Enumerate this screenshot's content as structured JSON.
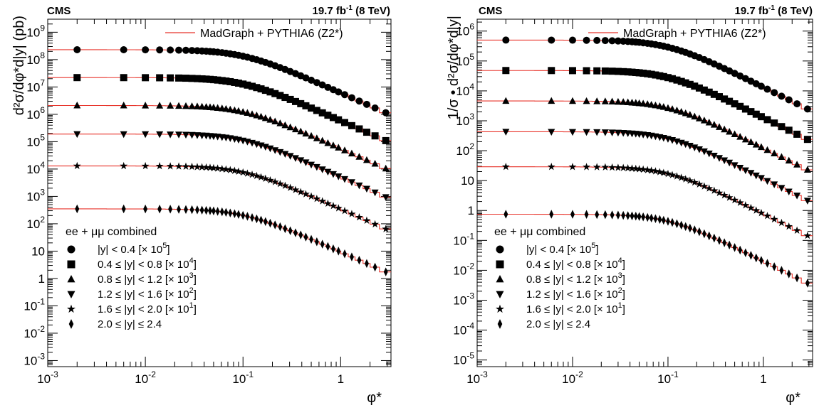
{
  "colors": {
    "curve": "#e8332a",
    "marker": "#000000"
  },
  "panels": [
    {
      "experiment": "CMS",
      "lumi": "19.7 fb",
      "lumi_sup": "-1",
      "energy": "(8 TeV)",
      "legend_curve": "MadGraph + PYTHIA6 (Z2*)",
      "legend_header": "ee + μμ combined",
      "y_ticks": [
        {
          "value": 0.001,
          "base": "10",
          "exp": "-3"
        },
        {
          "value": 0.01,
          "base": "10",
          "exp": "-2"
        },
        {
          "value": 0.1,
          "base": "10",
          "exp": "-1"
        },
        {
          "value": 1,
          "base": "1",
          "exp": ""
        },
        {
          "value": 10,
          "base": "10",
          "exp": ""
        },
        {
          "value": 100.0,
          "base": "10",
          "exp": "2"
        },
        {
          "value": 1000.0,
          "base": "10",
          "exp": "3"
        },
        {
          "value": 10000.0,
          "base": "10",
          "exp": "4"
        },
        {
          "value": 100000.0,
          "base": "10",
          "exp": "5"
        },
        {
          "value": 1000000.0,
          "base": "10",
          "exp": "6"
        },
        {
          "value": 10000000.0,
          "base": "10",
          "exp": "7"
        },
        {
          "value": 100000000.0,
          "base": "10",
          "exp": "8"
        },
        {
          "value": 1000000000.0,
          "base": "10",
          "exp": "9"
        }
      ]
    },
    {
      "experiment": "CMS",
      "lumi": "19.7 fb",
      "lumi_sup": "-1",
      "energy": "(8 TeV)",
      "legend_curve": "MadGraph + PYTHIA6 (Z2*)",
      "legend_header": "ee + μμ combined",
      "y_ticks": [
        {
          "value": 1e-05,
          "base": "10",
          "exp": "-5"
        },
        {
          "value": 0.0001,
          "base": "10",
          "exp": "-4"
        },
        {
          "value": 0.001,
          "base": "10",
          "exp": "-3"
        },
        {
          "value": 0.01,
          "base": "10",
          "exp": "-2"
        },
        {
          "value": 0.1,
          "base": "10",
          "exp": "-1"
        },
        {
          "value": 1,
          "base": "1",
          "exp": ""
        },
        {
          "value": 10,
          "base": "10",
          "exp": ""
        },
        {
          "value": 100.0,
          "base": "10",
          "exp": "2"
        },
        {
          "value": 1000.0,
          "base": "10",
          "exp": "3"
        },
        {
          "value": 10000.0,
          "base": "10",
          "exp": "4"
        },
        {
          "value": 100000.0,
          "base": "10",
          "exp": "5"
        },
        {
          "value": 1000000.0,
          "base": "10",
          "exp": "6"
        }
      ]
    }
  ],
  "x_ticks": [
    {
      "value": 0.001,
      "base": "10",
      "exp": "-3"
    },
    {
      "value": 0.01,
      "base": "10",
      "exp": "-2"
    },
    {
      "value": 0.1,
      "base": "10",
      "exp": "-1"
    },
    {
      "value": 1,
      "base": "1",
      "exp": ""
    }
  ],
  "legend_entries": [
    {
      "marker": "circle",
      "pre": "|y| < 0.4 [× 10",
      "exp": "5",
      "post": "]"
    },
    {
      "marker": "square",
      "pre": "0.4 ≤ |y| < 0.8 [× 10",
      "exp": "4",
      "post": "]"
    },
    {
      "marker": "triangle",
      "pre": "0.8 ≤ |y| < 1.2 [× 10",
      "exp": "3",
      "post": "]"
    },
    {
      "marker": "itriangle",
      "pre": "1.2 ≤ |y| < 1.6 [× 10",
      "exp": "2",
      "post": "]"
    },
    {
      "marker": "star",
      "pre": "1.6 ≤ |y| < 2.0 [× 10",
      "exp": "1",
      "post": "]"
    },
    {
      "marker": "diamond",
      "pre": "2.0 ≤ |y| ≤ 2.4",
      "exp": "",
      "post": ""
    }
  ],
  "chart_data": [
    {
      "type": "scatter",
      "xlabel": "φ*",
      "ylabel": "d²σ/dφ*d|y| (pb)",
      "xscale": "log",
      "yscale": "log",
      "xlim": [
        0.001,
        3.277
      ],
      "ylim": [
        0.0006,
        3000000000.0
      ],
      "legend": "bottom-left",
      "x": [
        0.002,
        0.006,
        0.01,
        0.014,
        0.018,
        0.022,
        0.026,
        0.03,
        0.034,
        0.038,
        0.042,
        0.046,
        0.05,
        0.055,
        0.061,
        0.067,
        0.074,
        0.082,
        0.09,
        0.1,
        0.111,
        0.124,
        0.138,
        0.153,
        0.17,
        0.19,
        0.213,
        0.24,
        0.27,
        0.305,
        0.345,
        0.39,
        0.44,
        0.5,
        0.57,
        0.65,
        0.74,
        0.84,
        0.95,
        1.1,
        1.3,
        1.55,
        1.85,
        2.25,
        2.9
      ],
      "x_bins": [
        0.0,
        0.004,
        0.008,
        0.012,
        0.016,
        0.02,
        0.024,
        0.028,
        0.032,
        0.036,
        0.04,
        0.044,
        0.048,
        0.052,
        0.058,
        0.064,
        0.07,
        0.078,
        0.086,
        0.094,
        0.106,
        0.116,
        0.132,
        0.144,
        0.162,
        0.178,
        0.202,
        0.224,
        0.256,
        0.284,
        0.326,
        0.364,
        0.416,
        0.464,
        0.536,
        0.604,
        0.696,
        0.784,
        0.896,
        1.004,
        1.196,
        1.404,
        1.696,
        2.004,
        2.496,
        3.277
      ],
      "series": [
        {
          "name": "|y| < 0.4 [× 10^5]",
          "marker": "circle",
          "norm": 230000000.0,
          "x0": 0.1,
          "p": 1.5
        },
        {
          "name": "0.4 ≤ |y| < 0.8 [× 10^4]",
          "marker": "square",
          "norm": 22000000.0,
          "x0": 0.1,
          "p": 1.5
        },
        {
          "name": "0.8 ≤ |y| < 1.2 [× 10^3]",
          "marker": "triangle",
          "norm": 2100000.0,
          "x0": 0.1,
          "p": 1.5
        },
        {
          "name": "1.2 ≤ |y| < 1.6 [× 10^2]",
          "marker": "itriangle",
          "norm": 190000.0,
          "x0": 0.1,
          "p": 1.5
        },
        {
          "name": "1.6 ≤ |y| < 2.0 [× 10^1]",
          "marker": "star",
          "norm": 13000.0,
          "x0": 0.1,
          "p": 1.5
        },
        {
          "name": "2.0 ≤ |y| ≤ 2.4",
          "marker": "diamond",
          "norm": 350.0,
          "x0": 0.1,
          "p": 1.5
        }
      ]
    },
    {
      "type": "scatter",
      "xlabel": "φ*",
      "ylabel": "1/σ • d²σ/dφ*d|y|",
      "xscale": "log",
      "yscale": "log",
      "xlim": [
        0.001,
        3.277
      ],
      "ylim": [
        6e-06,
        2500000.0
      ],
      "legend": "bottom-left",
      "series": [
        {
          "name": "|y| < 0.4 [× 10^5]",
          "marker": "circle",
          "norm": 500000.0,
          "x0": 0.1,
          "p": 1.5
        },
        {
          "name": "0.4 ≤ |y| < 0.8 [× 10^4]",
          "marker": "square",
          "norm": 48000.0,
          "x0": 0.1,
          "p": 1.5
        },
        {
          "name": "0.8 ≤ |y| < 1.2 [× 10^3]",
          "marker": "triangle",
          "norm": 4600.0,
          "x0": 0.1,
          "p": 1.5
        },
        {
          "name": "1.2 ≤ |y| < 1.6 [× 10^2]",
          "marker": "itriangle",
          "norm": 430.0,
          "x0": 0.1,
          "p": 1.5
        },
        {
          "name": "1.6 ≤ |y| < 2.0 [× 10^1]",
          "marker": "star",
          "norm": 29.0,
          "x0": 0.1,
          "p": 1.5
        },
        {
          "name": "2.0 ≤ |y| ≤ 2.4",
          "marker": "diamond",
          "norm": 0.75,
          "x0": 0.1,
          "p": 1.5
        }
      ]
    }
  ]
}
